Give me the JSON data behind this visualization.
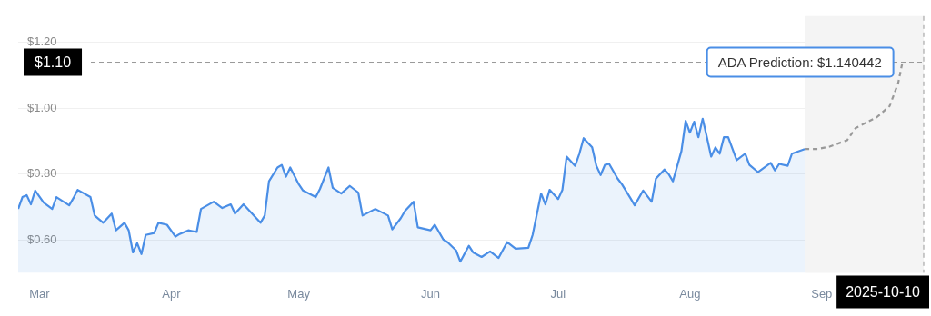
{
  "chart_data": {
    "type": "area",
    "xlim": [
      "2025-02-24",
      "2025-09-25"
    ],
    "xticks": [
      {
        "value": "2025-03-01",
        "label": "Mar"
      },
      {
        "value": "2025-04-01",
        "label": "Apr"
      },
      {
        "value": "2025-05-01",
        "label": "May"
      },
      {
        "value": "2025-06-01",
        "label": "Jun"
      },
      {
        "value": "2025-07-01",
        "label": "Jul"
      },
      {
        "value": "2025-08-01",
        "label": "Aug"
      },
      {
        "value": "2025-09-01",
        "label": "Sep"
      }
    ],
    "ylim": [
      0.5,
      1.28
    ],
    "yticks": [
      {
        "value": 0.6,
        "label": "$0.60"
      },
      {
        "value": 0.8,
        "label": "$0.80"
      },
      {
        "value": 1.0,
        "label": "$1.00"
      },
      {
        "value": 1.2,
        "label": "$1.20"
      }
    ],
    "grid": "y",
    "legend": false,
    "marker": "none",
    "series": [
      {
        "color": "#4a8ee6",
        "line_style": "solid",
        "x": [
          "2025-02-24",
          "2025-02-25",
          "2025-02-26",
          "2025-02-27",
          "2025-02-28",
          "2025-03-02",
          "2025-03-04",
          "2025-03-05",
          "2025-03-08",
          "2025-03-09",
          "2025-03-10",
          "2025-03-13",
          "2025-03-14",
          "2025-03-16",
          "2025-03-18",
          "2025-03-19",
          "2025-03-21",
          "2025-03-22",
          "2025-03-23",
          "2025-03-24",
          "2025-03-25",
          "2025-03-26",
          "2025-03-28",
          "2025-03-29",
          "2025-03-31",
          "2025-04-02",
          "2025-04-03",
          "2025-04-05",
          "2025-04-07",
          "2025-04-08",
          "2025-04-11",
          "2025-04-13",
          "2025-04-15",
          "2025-04-16",
          "2025-04-18",
          "2025-04-22",
          "2025-04-23",
          "2025-04-24",
          "2025-04-26",
          "2025-04-27",
          "2025-04-28",
          "2025-04-29",
          "2025-05-01",
          "2025-05-02",
          "2025-05-05",
          "2025-05-06",
          "2025-05-08",
          "2025-05-09",
          "2025-05-11",
          "2025-05-13",
          "2025-05-15",
          "2025-05-16",
          "2025-05-19",
          "2025-05-22",
          "2025-05-23",
          "2025-05-25",
          "2025-05-26",
          "2025-05-28",
          "2025-05-29",
          "2025-06-01",
          "2025-06-02",
          "2025-06-04",
          "2025-06-05",
          "2025-06-07",
          "2025-06-08",
          "2025-06-10",
          "2025-06-11",
          "2025-06-13",
          "2025-06-15",
          "2025-06-17",
          "2025-06-19",
          "2025-06-21",
          "2025-06-24",
          "2025-06-25",
          "2025-06-27",
          "2025-06-28",
          "2025-06-29",
          "2025-07-01",
          "2025-07-02",
          "2025-07-03",
          "2025-07-05",
          "2025-07-06",
          "2025-07-07",
          "2025-07-09",
          "2025-07-10",
          "2025-07-11",
          "2025-07-12",
          "2025-07-13",
          "2025-07-15",
          "2025-07-16",
          "2025-07-18",
          "2025-07-19",
          "2025-07-21",
          "2025-07-23",
          "2025-07-24",
          "2025-07-26",
          "2025-07-27",
          "2025-07-28",
          "2025-07-30",
          "2025-07-31",
          "2025-08-01",
          "2025-08-02",
          "2025-08-03",
          "2025-08-04",
          "2025-08-05",
          "2025-08-06",
          "2025-08-07",
          "2025-08-08",
          "2025-08-09",
          "2025-08-10",
          "2025-08-12",
          "2025-08-14",
          "2025-08-15",
          "2025-08-17",
          "2025-08-20",
          "2025-08-21",
          "2025-08-22",
          "2025-08-24",
          "2025-08-25",
          "2025-08-28"
        ],
        "values": [
          0.694,
          0.73,
          0.736,
          0.708,
          0.75,
          0.713,
          0.694,
          0.73,
          0.705,
          0.727,
          0.752,
          0.73,
          0.674,
          0.652,
          0.68,
          0.629,
          0.652,
          0.629,
          0.562,
          0.59,
          0.557,
          0.615,
          0.621,
          0.652,
          0.646,
          0.61,
          0.618,
          0.629,
          0.624,
          0.694,
          0.716,
          0.697,
          0.708,
          0.68,
          0.708,
          0.652,
          0.674,
          0.778,
          0.82,
          0.828,
          0.792,
          0.82,
          0.769,
          0.75,
          0.73,
          0.755,
          0.82,
          0.758,
          0.741,
          0.764,
          0.744,
          0.674,
          0.694,
          0.674,
          0.632,
          0.666,
          0.688,
          0.716,
          0.638,
          0.629,
          0.646,
          0.601,
          0.593,
          0.568,
          0.534,
          0.582,
          0.562,
          0.548,
          0.565,
          0.545,
          0.593,
          0.573,
          0.576,
          0.615,
          0.741,
          0.708,
          0.752,
          0.724,
          0.752,
          0.853,
          0.825,
          0.862,
          0.909,
          0.881,
          0.825,
          0.797,
          0.828,
          0.831,
          0.786,
          0.769,
          0.727,
          0.705,
          0.75,
          0.716,
          0.786,
          0.814,
          0.8,
          0.778,
          0.87,
          0.962,
          0.926,
          0.959,
          0.912,
          0.968,
          0.912,
          0.853,
          0.881,
          0.862,
          0.912,
          0.912,
          0.842,
          0.862,
          0.828,
          0.806,
          0.834,
          0.811,
          0.831,
          0.825,
          0.862,
          0.876
        ]
      },
      {
        "type": "line",
        "color": "#999999",
        "line_style": "dashed",
        "x": [
          "2025-08-28",
          "2025-08-31",
          "2025-09-03",
          "2025-09-07",
          "2025-09-09",
          "2025-09-14",
          "2025-09-17",
          "2025-09-19",
          "2025-09-20"
        ],
        "values": [
          0.876,
          0.876,
          0.884,
          0.903,
          0.94,
          0.973,
          1.007,
          1.077,
          1.14
        ]
      }
    ],
    "bands": [
      {
        "axis": "x",
        "from": "2025-08-28",
        "to": "2025-09-25",
        "color": "#f4f4f4"
      }
    ],
    "ref_lines": [
      {
        "axis": "y",
        "value": 1.14,
        "color": "#999999",
        "line_style": "dashed"
      },
      {
        "axis": "x",
        "value": "2025-09-25",
        "label": "2025-10-10",
        "color": "#999999",
        "line_style": "dashed"
      }
    ],
    "annotations": [
      "$1.10",
      {
        "text": "ADA Prediction: $1.140442",
        "x": "2025-09-20",
        "y": 1.14
      }
    ]
  }
}
